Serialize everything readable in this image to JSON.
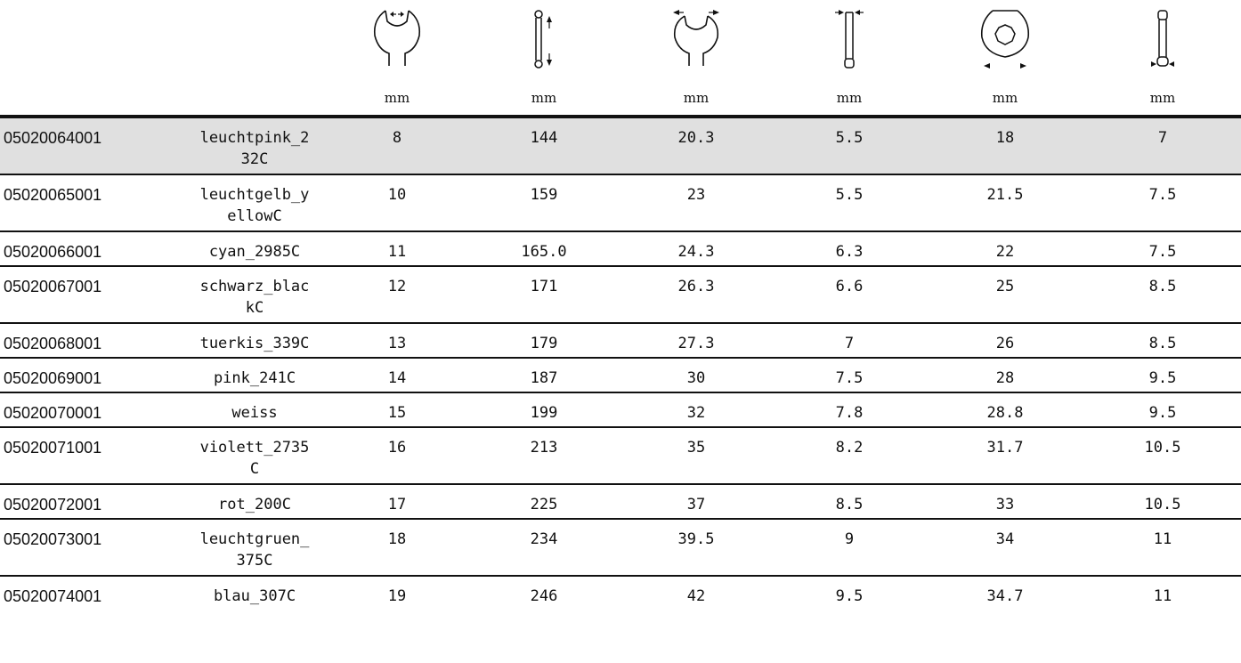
{
  "units": [
    "mm",
    "mm",
    "mm",
    "mm",
    "mm",
    "mm"
  ],
  "icons": [
    "open-end-jaw-width-icon",
    "tool-length-icon",
    "open-end-head-width-icon",
    "open-end-head-thickness-icon",
    "ring-end-head-width-icon",
    "ring-end-head-thickness-icon"
  ],
  "highlight_color": "#e0e0e0",
  "rows": [
    {
      "article": "05020064001",
      "color": "leuchtpink_232C",
      "v1": "8",
      "v2": "144",
      "v3": "20.3",
      "v4": "5.5",
      "v5": "18",
      "v6": "7"
    },
    {
      "article": "05020065001",
      "color": "leuchtgelb_yellowC",
      "v1": "10",
      "v2": "159",
      "v3": "23",
      "v4": "5.5",
      "v5": "21.5",
      "v6": "7.5"
    },
    {
      "article": "05020066001",
      "color": "cyan_2985C",
      "v1": "11",
      "v2": "165.0",
      "v3": "24.3",
      "v4": "6.3",
      "v5": "22",
      "v6": "7.5"
    },
    {
      "article": "05020067001",
      "color": "schwarz_blackC",
      "v1": "12",
      "v2": "171",
      "v3": "26.3",
      "v4": "6.6",
      "v5": "25",
      "v6": "8.5"
    },
    {
      "article": "05020068001",
      "color": "tuerkis_339C",
      "v1": "13",
      "v2": "179",
      "v3": "27.3",
      "v4": "7",
      "v5": "26",
      "v6": "8.5"
    },
    {
      "article": "05020069001",
      "color": "pink_241C",
      "v1": "14",
      "v2": "187",
      "v3": "30",
      "v4": "7.5",
      "v5": "28",
      "v6": "9.5"
    },
    {
      "article": "05020070001",
      "color": "weiss",
      "v1": "15",
      "v2": "199",
      "v3": "32",
      "v4": "7.8",
      "v5": "28.8",
      "v6": "9.5"
    },
    {
      "article": "05020071001",
      "color": "violett_2735C",
      "v1": "16",
      "v2": "213",
      "v3": "35",
      "v4": "8.2",
      "v5": "31.7",
      "v6": "10.5"
    },
    {
      "article": "05020072001",
      "color": "rot_200C",
      "v1": "17",
      "v2": "225",
      "v3": "37",
      "v4": "8.5",
      "v5": "33",
      "v6": "10.5"
    },
    {
      "article": "05020073001",
      "color": "leuchtgruen_375C",
      "v1": "18",
      "v2": "234",
      "v3": "39.5",
      "v4": "9",
      "v5": "34",
      "v6": "11"
    },
    {
      "article": "05020074001",
      "color": "blau_307C",
      "v1": "19",
      "v2": "246",
      "v3": "42",
      "v4": "9.5",
      "v5": "34.7",
      "v6": "11"
    }
  ]
}
